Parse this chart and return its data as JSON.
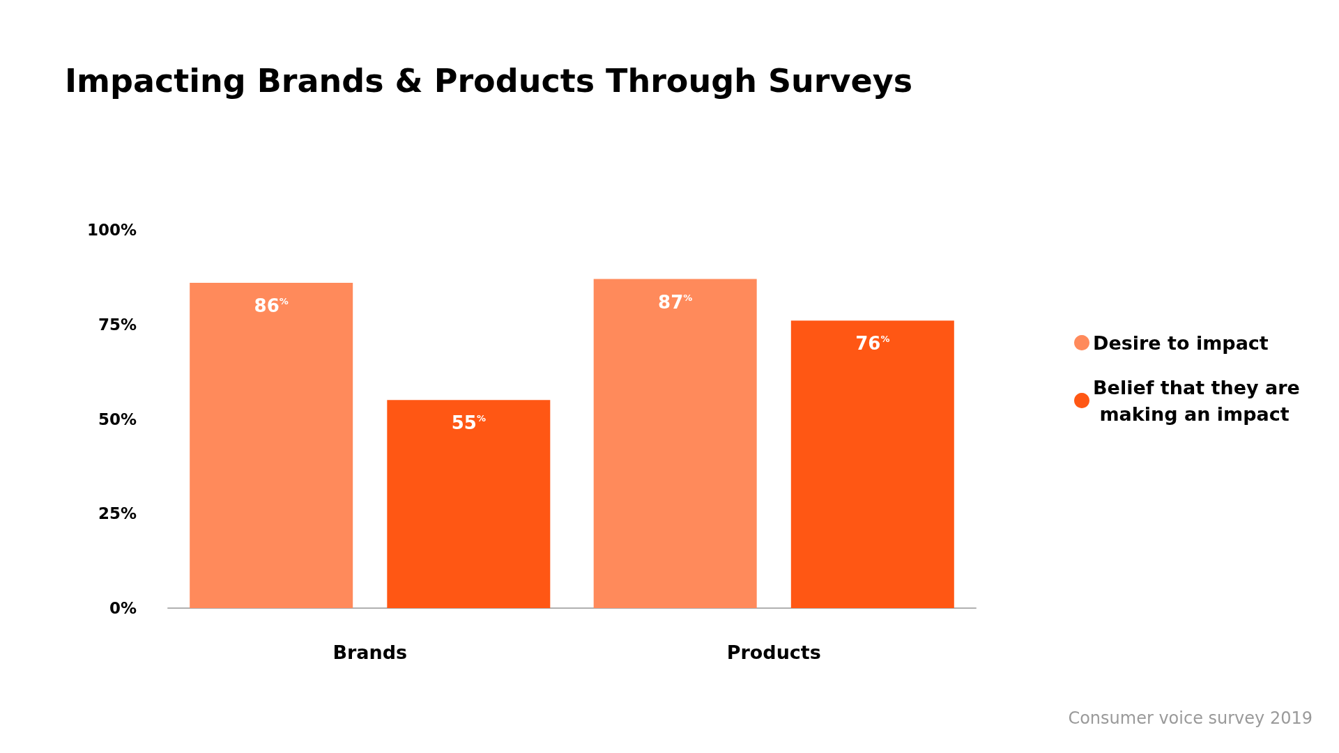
{
  "chart_data": {
    "type": "bar",
    "title": "Impacting Brands & Products Through Surveys",
    "categories": [
      "Brands",
      "Products"
    ],
    "series": [
      {
        "name": "Desire to impact",
        "color": "#ff8a5b",
        "values": [
          86,
          87
        ],
        "value_labels": [
          "86$^{%}$",
          "87$^{%}$"
        ]
      },
      {
        "name": "Belief that they are making an impact",
        "color": "#ff5714",
        "values": [
          55,
          76
        ],
        "value_labels": [
          "55$^{%}$",
          "76$^{%}$"
        ]
      }
    ],
    "ylim": [
      0,
      100
    ],
    "yticks": [
      {
        "value": 0,
        "label": "0%"
      },
      {
        "value": 25,
        "label": "25%"
      },
      {
        "value": 50,
        "label": "50%"
      },
      {
        "value": 75,
        "label": "75%"
      },
      {
        "value": 100,
        "label": "100%"
      }
    ],
    "grid": false,
    "legend": "right",
    "annotations": [
      "Consumer voice survey 2019"
    ]
  }
}
